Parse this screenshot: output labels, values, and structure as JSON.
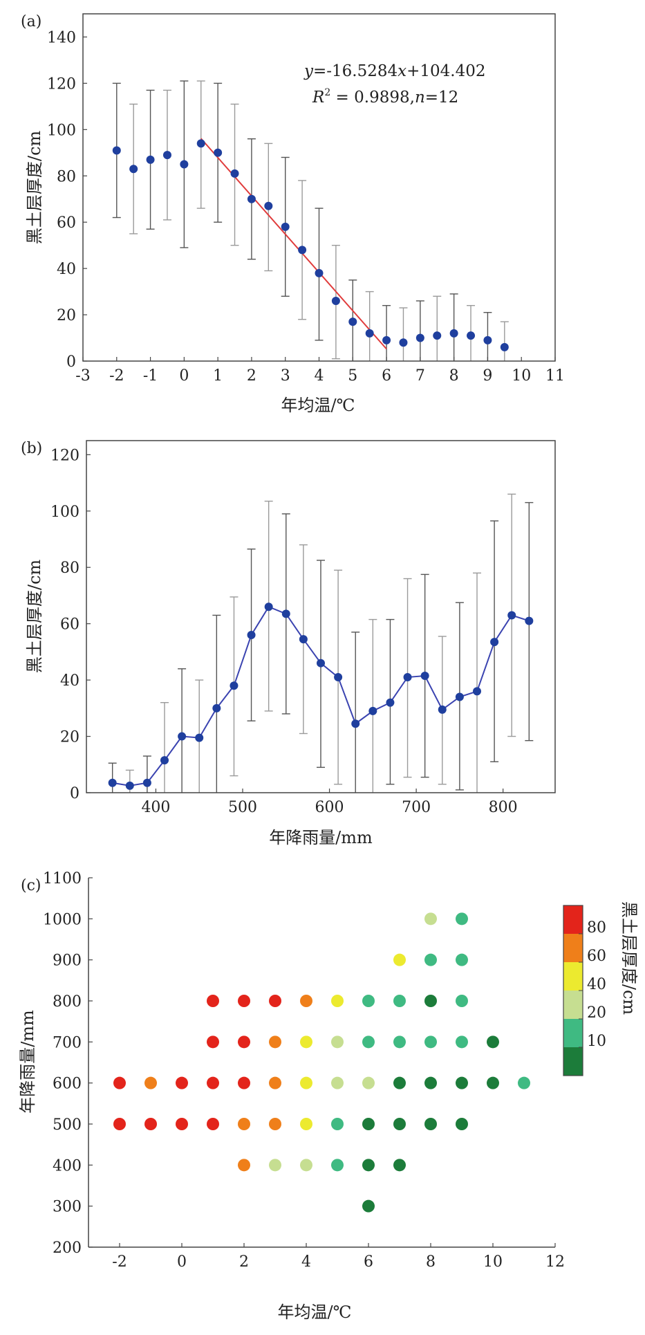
{
  "panel_tags": [
    "(a)",
    "(b)",
    "(c)"
  ],
  "chart_data": [
    {
      "panel": "(a)",
      "type": "scatter",
      "title": "",
      "xlabel": "年均温/℃",
      "ylabel": "黑土层厚度/cm",
      "xlim": [
        -3,
        11
      ],
      "ylim": [
        0,
        150
      ],
      "xticks": [
        -3,
        -2,
        -1,
        0,
        1,
        2,
        3,
        4,
        5,
        6,
        7,
        8,
        9,
        10,
        11
      ],
      "yticks": [
        0,
        20,
        40,
        60,
        80,
        100,
        120,
        140
      ],
      "grid": false,
      "points": [
        {
          "x": -2,
          "y": 91,
          "lo": 62,
          "hi": 120
        },
        {
          "x": -1.5,
          "y": 83,
          "lo": 55,
          "hi": 111
        },
        {
          "x": -1,
          "y": 87,
          "lo": 57,
          "hi": 117
        },
        {
          "x": -0.5,
          "y": 89,
          "lo": 61,
          "hi": 117
        },
        {
          "x": 0,
          "y": 85,
          "lo": 49,
          "hi": 121
        },
        {
          "x": 0.5,
          "y": 94,
          "lo": 66,
          "hi": 121
        },
        {
          "x": 1,
          "y": 90,
          "lo": 60,
          "hi": 120
        },
        {
          "x": 1.5,
          "y": 81,
          "lo": 50,
          "hi": 111
        },
        {
          "x": 2,
          "y": 70,
          "lo": 44,
          "hi": 96
        },
        {
          "x": 2.5,
          "y": 67,
          "lo": 39,
          "hi": 94
        },
        {
          "x": 3,
          "y": 58,
          "lo": 28,
          "hi": 88
        },
        {
          "x": 3.5,
          "y": 48,
          "lo": 18,
          "hi": 78
        },
        {
          "x": 4,
          "y": 38,
          "lo": 9,
          "hi": 66
        },
        {
          "x": 4.5,
          "y": 26,
          "lo": 1,
          "hi": 50
        },
        {
          "x": 5,
          "y": 17,
          "lo": 0,
          "hi": 35
        },
        {
          "x": 5.5,
          "y": 12,
          "lo": 0,
          "hi": 30
        },
        {
          "x": 6,
          "y": 9,
          "lo": 0,
          "hi": 24
        },
        {
          "x": 6.5,
          "y": 8,
          "lo": 0,
          "hi": 23
        },
        {
          "x": 7,
          "y": 10,
          "lo": 0,
          "hi": 26
        },
        {
          "x": 7.5,
          "y": 11,
          "lo": 0,
          "hi": 28
        },
        {
          "x": 8,
          "y": 12,
          "lo": 0,
          "hi": 29
        },
        {
          "x": 8.5,
          "y": 11,
          "lo": 0,
          "hi": 24
        },
        {
          "x": 9,
          "y": 9,
          "lo": 0,
          "hi": 21
        },
        {
          "x": 9.5,
          "y": 6,
          "lo": 0,
          "hi": 17
        }
      ],
      "fit": {
        "x0": 0.5,
        "x1": 6.0,
        "slope": -16.5284,
        "intercept": 104.402,
        "color": "#e03c3c"
      },
      "equation": {
        "y_label": "y",
        "rhs": "=-16.5284",
        "x_label": "x",
        "tail": "+104.402"
      },
      "stats": {
        "r_label": "R",
        "r_sup": "2",
        "r_value": " = 0.9898,",
        "n_label": "n",
        "n_value": "=12"
      },
      "point_color": "#1f3f9e",
      "errorbar_colors": [
        "#555555",
        "#9a9a9a"
      ]
    },
    {
      "panel": "(b)",
      "type": "line",
      "title": "",
      "xlabel": "年降雨量/mm",
      "ylabel": "黑土层厚度/cm",
      "xlim": [
        320,
        860
      ],
      "ylim": [
        0,
        125
      ],
      "xticks": [
        400,
        500,
        600,
        700,
        800
      ],
      "yticks": [
        0,
        20,
        40,
        60,
        80,
        100,
        120
      ],
      "grid": false,
      "points": [
        {
          "x": 350,
          "y": 3.5,
          "lo": 0,
          "hi": 10.5
        },
        {
          "x": 370,
          "y": 2.5,
          "lo": 0,
          "hi": 8
        },
        {
          "x": 390,
          "y": 3.5,
          "lo": 0,
          "hi": 13
        },
        {
          "x": 410,
          "y": 11.5,
          "lo": 0,
          "hi": 32
        },
        {
          "x": 430,
          "y": 20,
          "lo": 0,
          "hi": 44
        },
        {
          "x": 450,
          "y": 19.5,
          "lo": 0,
          "hi": 40
        },
        {
          "x": 470,
          "y": 30,
          "lo": 0,
          "hi": 63
        },
        {
          "x": 490,
          "y": 38,
          "lo": 6,
          "hi": 69.5
        },
        {
          "x": 510,
          "y": 56,
          "lo": 25.5,
          "hi": 86.5
        },
        {
          "x": 530,
          "y": 66,
          "lo": 29,
          "hi": 103.5
        },
        {
          "x": 550,
          "y": 63.5,
          "lo": 28,
          "hi": 99
        },
        {
          "x": 570,
          "y": 54.5,
          "lo": 21,
          "hi": 88
        },
        {
          "x": 590,
          "y": 46,
          "lo": 9,
          "hi": 82.5
        },
        {
          "x": 610,
          "y": 41,
          "lo": 3,
          "hi": 79
        },
        {
          "x": 630,
          "y": 24.5,
          "lo": 0,
          "hi": 57
        },
        {
          "x": 650,
          "y": 29,
          "lo": 0,
          "hi": 61.5
        },
        {
          "x": 670,
          "y": 32,
          "lo": 3,
          "hi": 61.5
        },
        {
          "x": 690,
          "y": 41,
          "lo": 5.5,
          "hi": 76
        },
        {
          "x": 710,
          "y": 41.5,
          "lo": 5.5,
          "hi": 77.5
        },
        {
          "x": 730,
          "y": 29.5,
          "lo": 3,
          "hi": 55.5
        },
        {
          "x": 750,
          "y": 34,
          "lo": 1,
          "hi": 67.5
        },
        {
          "x": 770,
          "y": 36,
          "lo": 0,
          "hi": 78
        },
        {
          "x": 790,
          "y": 53.5,
          "lo": 11,
          "hi": 96.5
        },
        {
          "x": 810,
          "y": 63,
          "lo": 20,
          "hi": 106
        },
        {
          "x": 830,
          "y": 61,
          "lo": 18.5,
          "hi": 103
        }
      ],
      "line_color": "#3a43b0",
      "point_color": "#1f3f9e",
      "errorbar_colors": [
        "#555555",
        "#9a9a9a"
      ]
    },
    {
      "panel": "(c)",
      "type": "scatter",
      "title": "",
      "xlabel": "年均温/℃",
      "ylabel": "年降雨量/mm",
      "xlim": [
        -3,
        12
      ],
      "ylim": [
        200,
        1100
      ],
      "xticks": [
        -2,
        0,
        2,
        4,
        6,
        8,
        10,
        12
      ],
      "yticks": [
        200,
        300,
        400,
        500,
        600,
        700,
        800,
        900,
        1000,
        1100
      ],
      "grid": false,
      "colorbar": {
        "label": "黑土层厚度/cm",
        "tick_labels": [
          "80",
          "60",
          "40",
          "20",
          "10"
        ],
        "classes": [
          {
            "key": "red",
            "color": "#e3241b"
          },
          {
            "key": "orange",
            "color": "#ef7f1a"
          },
          {
            "key": "yellow",
            "color": "#ecea2f"
          },
          {
            "key": "light",
            "color": "#c6de91"
          },
          {
            "key": "teal",
            "color": "#3fba82"
          },
          {
            "key": "green",
            "color": "#1c7c3a"
          }
        ]
      },
      "points": [
        {
          "x": 8,
          "y": 1000,
          "c": "light"
        },
        {
          "x": 9,
          "y": 1000,
          "c": "teal"
        },
        {
          "x": 7,
          "y": 900,
          "c": "yellow"
        },
        {
          "x": 8,
          "y": 900,
          "c": "teal"
        },
        {
          "x": 9,
          "y": 900,
          "c": "teal"
        },
        {
          "x": 1,
          "y": 800,
          "c": "red"
        },
        {
          "x": 2,
          "y": 800,
          "c": "red"
        },
        {
          "x": 3,
          "y": 800,
          "c": "red"
        },
        {
          "x": 4,
          "y": 800,
          "c": "orange"
        },
        {
          "x": 5,
          "y": 800,
          "c": "yellow"
        },
        {
          "x": 6,
          "y": 800,
          "c": "teal"
        },
        {
          "x": 7,
          "y": 800,
          "c": "teal"
        },
        {
          "x": 8,
          "y": 800,
          "c": "green"
        },
        {
          "x": 9,
          "y": 800,
          "c": "teal"
        },
        {
          "x": 1,
          "y": 700,
          "c": "red"
        },
        {
          "x": 2,
          "y": 700,
          "c": "red"
        },
        {
          "x": 3,
          "y": 700,
          "c": "orange"
        },
        {
          "x": 4,
          "y": 700,
          "c": "yellow"
        },
        {
          "x": 5,
          "y": 700,
          "c": "light"
        },
        {
          "x": 6,
          "y": 700,
          "c": "teal"
        },
        {
          "x": 7,
          "y": 700,
          "c": "teal"
        },
        {
          "x": 8,
          "y": 700,
          "c": "teal"
        },
        {
          "x": 9,
          "y": 700,
          "c": "teal"
        },
        {
          "x": 10,
          "y": 700,
          "c": "green"
        },
        {
          "x": -2,
          "y": 600,
          "c": "red"
        },
        {
          "x": -1,
          "y": 600,
          "c": "orange"
        },
        {
          "x": 0,
          "y": 600,
          "c": "red"
        },
        {
          "x": 1,
          "y": 600,
          "c": "red"
        },
        {
          "x": 2,
          "y": 600,
          "c": "red"
        },
        {
          "x": 3,
          "y": 600,
          "c": "orange"
        },
        {
          "x": 4,
          "y": 600,
          "c": "yellow"
        },
        {
          "x": 5,
          "y": 600,
          "c": "light"
        },
        {
          "x": 6,
          "y": 600,
          "c": "light"
        },
        {
          "x": 7,
          "y": 600,
          "c": "green"
        },
        {
          "x": 8,
          "y": 600,
          "c": "green"
        },
        {
          "x": 9,
          "y": 600,
          "c": "green"
        },
        {
          "x": 10,
          "y": 600,
          "c": "green"
        },
        {
          "x": 11,
          "y": 600,
          "c": "teal"
        },
        {
          "x": -2,
          "y": 500,
          "c": "red"
        },
        {
          "x": -1,
          "y": 500,
          "c": "red"
        },
        {
          "x": 0,
          "y": 500,
          "c": "red"
        },
        {
          "x": 1,
          "y": 500,
          "c": "red"
        },
        {
          "x": 2,
          "y": 500,
          "c": "orange"
        },
        {
          "x": 3,
          "y": 500,
          "c": "orange"
        },
        {
          "x": 4,
          "y": 500,
          "c": "yellow"
        },
        {
          "x": 5,
          "y": 500,
          "c": "teal"
        },
        {
          "x": 6,
          "y": 500,
          "c": "green"
        },
        {
          "x": 7,
          "y": 500,
          "c": "green"
        },
        {
          "x": 8,
          "y": 500,
          "c": "green"
        },
        {
          "x": 9,
          "y": 500,
          "c": "green"
        },
        {
          "x": 2,
          "y": 400,
          "c": "orange"
        },
        {
          "x": 3,
          "y": 400,
          "c": "light"
        },
        {
          "x": 4,
          "y": 400,
          "c": "light"
        },
        {
          "x": 5,
          "y": 400,
          "c": "teal"
        },
        {
          "x": 6,
          "y": 400,
          "c": "green"
        },
        {
          "x": 7,
          "y": 400,
          "c": "green"
        },
        {
          "x": 6,
          "y": 300,
          "c": "green"
        }
      ]
    }
  ]
}
